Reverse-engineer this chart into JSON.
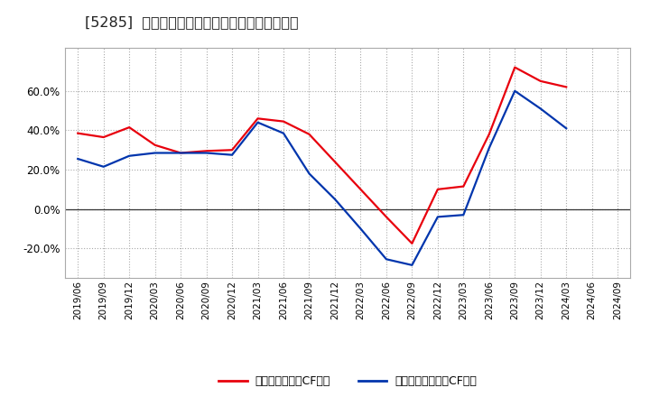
{
  "title": "[5285]  有利子負債キャッシュフロー比率の推移",
  "x_labels": [
    "2019/06",
    "2019/09",
    "2019/12",
    "2020/03",
    "2020/06",
    "2020/09",
    "2020/12",
    "2021/03",
    "2021/06",
    "2021/09",
    "2021/12",
    "2022/03",
    "2022/06",
    "2022/09",
    "2022/12",
    "2023/03",
    "2023/06",
    "2023/09",
    "2023/12",
    "2024/03",
    "2024/06",
    "2024/09"
  ],
  "operating_cf_ratio": [
    0.385,
    0.365,
    0.415,
    0.325,
    0.285,
    0.295,
    0.3,
    0.46,
    0.445,
    0.38,
    0.24,
    0.1,
    -0.04,
    -0.175,
    0.1,
    0.115,
    0.38,
    0.72,
    0.65,
    0.62,
    null,
    null
  ],
  "free_cf_ratio": [
    0.255,
    0.215,
    0.27,
    0.285,
    0.285,
    0.285,
    0.275,
    0.44,
    0.385,
    0.18,
    0.05,
    -0.1,
    -0.255,
    -0.285,
    -0.04,
    -0.03,
    0.31,
    0.6,
    0.51,
    0.41,
    null,
    null
  ],
  "operating_color": "#e8000d",
  "free_color": "#0035ad",
  "background_color": "#ffffff",
  "plot_bg_color": "#ffffff",
  "grid_color": "#aaaaaa",
  "ylim": [
    -0.35,
    0.82
  ],
  "yticks": [
    -0.2,
    0.0,
    0.2,
    0.4,
    0.6
  ],
  "legend_operating": "有利子負債営業CF比率",
  "legend_free": "有利子負債フリーCF比率"
}
